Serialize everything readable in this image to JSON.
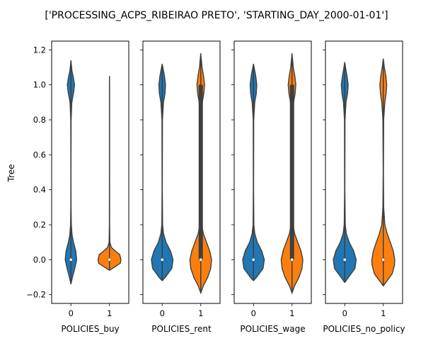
{
  "title": "['PROCESSING_ACPS_RIBEIRAO PRETO', 'STARTING_DAY_2000-01-01']",
  "ylabel": "Tree",
  "colors": {
    "0": "#1f77b4",
    "1": "#ff7f0e",
    "box": "#3f3f3f",
    "median": "#ffffff"
  },
  "chart_data": [
    {
      "type": "violin",
      "xlabel": "POLICIES_buy",
      "categories": [
        "0",
        "1"
      ],
      "ylim": [
        -0.25,
        1.25
      ],
      "yticks": [
        "-0.2",
        "0.0",
        "0.2",
        "0.4",
        "0.6",
        "0.8",
        "1.0",
        "1.2"
      ],
      "violins": [
        {
          "category": "0",
          "min": -0.14,
          "max": 1.14,
          "median": 0.0,
          "q1": 0.0,
          "q3": 0.0,
          "density": [
            [
              -0.14,
              0.0
            ],
            [
              -0.1,
              0.12
            ],
            [
              -0.05,
              0.3
            ],
            [
              0.0,
              0.45
            ],
            [
              0.05,
              0.38
            ],
            [
              0.1,
              0.2
            ],
            [
              0.14,
              0.09
            ],
            [
              0.2,
              0.03
            ],
            [
              0.3,
              0.01
            ],
            [
              0.5,
              0.005
            ],
            [
              0.8,
              0.015
            ],
            [
              0.9,
              0.07
            ],
            [
              0.96,
              0.22
            ],
            [
              1.0,
              0.28
            ],
            [
              1.04,
              0.2
            ],
            [
              1.08,
              0.08
            ],
            [
              1.14,
              0.0
            ]
          ]
        },
        {
          "category": "1",
          "min": -0.06,
          "max": 1.05,
          "median": 0.0,
          "q1": 0.0,
          "q3": 0.0,
          "density": [
            [
              -0.06,
              0.0
            ],
            [
              -0.04,
              0.45
            ],
            [
              -0.02,
              0.85
            ],
            [
              0.0,
              0.9
            ],
            [
              0.03,
              0.8
            ],
            [
              0.05,
              0.45
            ],
            [
              0.07,
              0.15
            ],
            [
              0.1,
              0.03
            ],
            [
              0.2,
              0.01
            ],
            [
              0.5,
              0.005
            ],
            [
              1.0,
              0.005
            ],
            [
              1.05,
              0.0
            ]
          ]
        }
      ]
    },
    {
      "type": "violin",
      "xlabel": "POLICIES_rent",
      "categories": [
        "0",
        "1"
      ],
      "ylim": [
        -0.25,
        1.25
      ],
      "violins": [
        {
          "category": "0",
          "min": -0.12,
          "max": 1.12,
          "median": 0.0,
          "q1": 0.0,
          "q3": 0.0,
          "density": [
            [
              -0.12,
              0.0
            ],
            [
              -0.1,
              0.25
            ],
            [
              -0.05,
              0.75
            ],
            [
              0.0,
              0.85
            ],
            [
              0.05,
              0.65
            ],
            [
              0.1,
              0.3
            ],
            [
              0.15,
              0.1
            ],
            [
              0.2,
              0.03
            ],
            [
              0.4,
              0.01
            ],
            [
              0.8,
              0.02
            ],
            [
              0.9,
              0.1
            ],
            [
              0.95,
              0.22
            ],
            [
              1.0,
              0.26
            ],
            [
              1.05,
              0.18
            ],
            [
              1.1,
              0.05
            ],
            [
              1.12,
              0.0
            ]
          ]
        },
        {
          "category": "1",
          "min": -0.19,
          "max": 1.18,
          "median": 0.0,
          "q1": 0.0,
          "q3": 1.0,
          "density": [
            [
              -0.19,
              0.0
            ],
            [
              -0.15,
              0.2
            ],
            [
              -0.1,
              0.55
            ],
            [
              -0.05,
              0.78
            ],
            [
              0.0,
              0.85
            ],
            [
              0.05,
              0.7
            ],
            [
              0.1,
              0.45
            ],
            [
              0.15,
              0.2
            ],
            [
              0.2,
              0.08
            ],
            [
              0.3,
              0.02
            ],
            [
              0.5,
              0.01
            ],
            [
              0.8,
              0.03
            ],
            [
              0.9,
              0.12
            ],
            [
              0.95,
              0.24
            ],
            [
              1.0,
              0.3
            ],
            [
              1.05,
              0.22
            ],
            [
              1.1,
              0.1
            ],
            [
              1.18,
              0.0
            ]
          ]
        }
      ]
    },
    {
      "type": "violin",
      "xlabel": "POLICIES_wage",
      "categories": [
        "0",
        "1"
      ],
      "ylim": [
        -0.25,
        1.25
      ],
      "violins": [
        {
          "category": "0",
          "min": -0.12,
          "max": 1.12,
          "median": 0.0,
          "q1": 0.0,
          "q3": 0.0,
          "density": [
            [
              -0.12,
              0.0
            ],
            [
              -0.1,
              0.25
            ],
            [
              -0.05,
              0.75
            ],
            [
              0.0,
              0.85
            ],
            [
              0.05,
              0.65
            ],
            [
              0.1,
              0.3
            ],
            [
              0.15,
              0.1
            ],
            [
              0.2,
              0.03
            ],
            [
              0.4,
              0.01
            ],
            [
              0.8,
              0.02
            ],
            [
              0.9,
              0.1
            ],
            [
              0.95,
              0.22
            ],
            [
              1.0,
              0.26
            ],
            [
              1.05,
              0.18
            ],
            [
              1.1,
              0.05
            ],
            [
              1.12,
              0.0
            ]
          ]
        },
        {
          "category": "1",
          "min": -0.19,
          "max": 1.18,
          "median": 0.0,
          "q1": 0.0,
          "q3": 1.0,
          "density": [
            [
              -0.19,
              0.0
            ],
            [
              -0.15,
              0.2
            ],
            [
              -0.1,
              0.55
            ],
            [
              -0.05,
              0.78
            ],
            [
              0.0,
              0.85
            ],
            [
              0.05,
              0.7
            ],
            [
              0.1,
              0.45
            ],
            [
              0.15,
              0.2
            ],
            [
              0.2,
              0.08
            ],
            [
              0.3,
              0.02
            ],
            [
              0.5,
              0.01
            ],
            [
              0.8,
              0.03
            ],
            [
              0.9,
              0.12
            ],
            [
              0.95,
              0.24
            ],
            [
              1.0,
              0.3
            ],
            [
              1.05,
              0.22
            ],
            [
              1.1,
              0.1
            ],
            [
              1.18,
              0.0
            ]
          ]
        }
      ]
    },
    {
      "type": "violin",
      "xlabel": "POLICIES_no_policy",
      "categories": [
        "0",
        "1"
      ],
      "ylim": [
        -0.25,
        1.25
      ],
      "violins": [
        {
          "category": "0",
          "min": -0.13,
          "max": 1.13,
          "median": 0.0,
          "q1": 0.0,
          "q3": 0.0,
          "density": [
            [
              -0.13,
              0.0
            ],
            [
              -0.1,
              0.3
            ],
            [
              -0.05,
              0.8
            ],
            [
              0.0,
              0.9
            ],
            [
              0.05,
              0.7
            ],
            [
              0.1,
              0.35
            ],
            [
              0.15,
              0.12
            ],
            [
              0.2,
              0.04
            ],
            [
              0.4,
              0.01
            ],
            [
              0.8,
              0.02
            ],
            [
              0.9,
              0.1
            ],
            [
              0.95,
              0.22
            ],
            [
              1.0,
              0.27
            ],
            [
              1.05,
              0.18
            ],
            [
              1.1,
              0.06
            ],
            [
              1.13,
              0.0
            ]
          ]
        },
        {
          "category": "1",
          "min": -0.15,
          "max": 1.15,
          "median": 0.0,
          "q1": 0.0,
          "q3": 0.0,
          "density": [
            [
              -0.15,
              0.0
            ],
            [
              -0.12,
              0.3
            ],
            [
              -0.08,
              0.7
            ],
            [
              -0.03,
              0.88
            ],
            [
              0.0,
              0.9
            ],
            [
              0.05,
              0.78
            ],
            [
              0.1,
              0.55
            ],
            [
              0.15,
              0.3
            ],
            [
              0.2,
              0.12
            ],
            [
              0.3,
              0.03
            ],
            [
              0.5,
              0.01
            ],
            [
              0.8,
              0.03
            ],
            [
              0.9,
              0.12
            ],
            [
              0.95,
              0.22
            ],
            [
              1.0,
              0.27
            ],
            [
              1.05,
              0.2
            ],
            [
              1.1,
              0.08
            ],
            [
              1.15,
              0.0
            ]
          ]
        }
      ]
    }
  ]
}
